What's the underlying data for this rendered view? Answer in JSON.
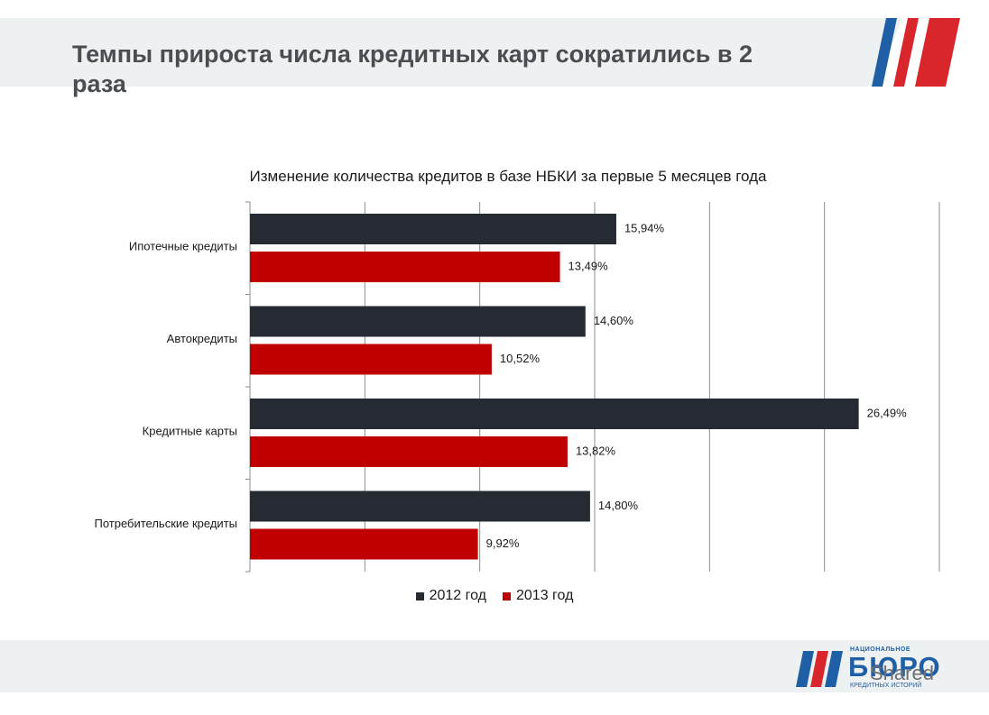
{
  "slide": {
    "title": "Темпы прироста числа кредитных карт сократились в 2 раза"
  },
  "colors": {
    "series_2012": "#262b33",
    "series_2013": "#c00000",
    "flag_blue": "#1f5fa6",
    "flag_red": "#d9262d"
  },
  "chart_data": {
    "type": "bar",
    "orientation": "horizontal",
    "title": "Изменение количества кредитов в базе НБКИ за первые 5 месяцев года",
    "categories": [
      "Ипотечные кредиты",
      "Автокредиты",
      "Кредитные карты",
      "Потребительские кредиты"
    ],
    "series": [
      {
        "name": "2012 год",
        "values": [
          15.94,
          14.6,
          26.49,
          14.8
        ],
        "labels": [
          "15,94%",
          "14,60%",
          "26,49%",
          "14,80%"
        ]
      },
      {
        "name": "2013 год",
        "values": [
          13.49,
          10.52,
          13.82,
          9.92
        ],
        "labels": [
          "13,49%",
          "10,52%",
          "13,82%",
          "9,92%"
        ]
      }
    ],
    "xlim": [
      0,
      30
    ],
    "grid": true,
    "legend": "bottom"
  },
  "logo": {
    "line1": "НАЦИОНАЛЬНОЕ",
    "line2": "БЮРО",
    "line3": "КРЕДИТНЫХ ИСТОРИЙ"
  },
  "watermark": "Shared"
}
